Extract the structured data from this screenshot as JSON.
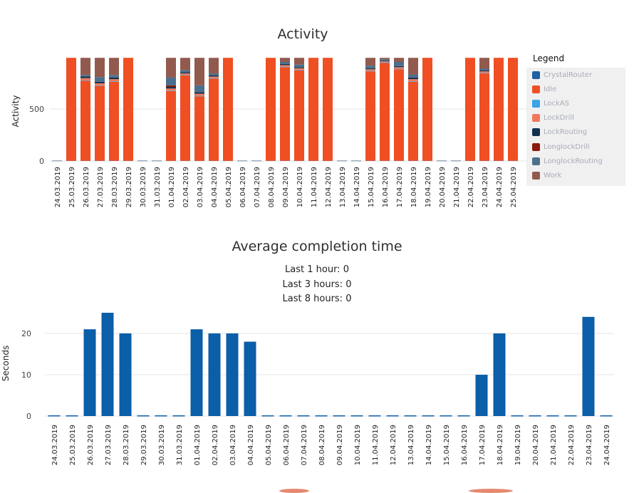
{
  "activity": {
    "title": "Activity",
    "ylabel": "Activity",
    "legend_title": "Legend"
  },
  "completion": {
    "title": "Average completion time",
    "ylabel": "Seconds",
    "stats": [
      "Last 1 hour: 0",
      "Last 3 hours: 0",
      "Last 8 hours: 0"
    ]
  },
  "chart_data": [
    {
      "type": "bar",
      "stacked": true,
      "title": "Activity",
      "xlabel": "",
      "ylabel": "Activity",
      "ylim": [
        0,
        1000
      ],
      "yticks": [
        0,
        500
      ],
      "grid": true,
      "legend_position": "right",
      "categories": [
        "24.03.2019",
        "25.03.2019",
        "26.03.2019",
        "27.03.2019",
        "28.03.2019",
        "29.03.2019",
        "30.03.2019",
        "31.03.2019",
        "01.04.2019",
        "02.04.2019",
        "03.04.2019",
        "04.04.2019",
        "05.04.2019",
        "06.04.2019",
        "07.04.2019",
        "08.04.2019",
        "09.04.2019",
        "10.04.2019",
        "11.04.2019",
        "12.04.2019",
        "13.04.2019",
        "14.04.2019",
        "15.04.2019",
        "16.04.2019",
        "17.04.2019",
        "18.04.2019",
        "19.04.2019",
        "20.04.2019",
        "21.04.2019",
        "22.04.2019",
        "23.04.2019",
        "24.04.2019",
        "25.04.2019"
      ],
      "series": [
        {
          "name": "CrystalRouter",
          "color": "#1f5fa3",
          "values": [
            0,
            2,
            2,
            2,
            2,
            2,
            0,
            0,
            2,
            2,
            2,
            2,
            2,
            0,
            0,
            2,
            2,
            2,
            2,
            2,
            0,
            0,
            2,
            2,
            2,
            2,
            2,
            0,
            0,
            2,
            2,
            2,
            2
          ]
        },
        {
          "name": "Idle",
          "color": "#f04e23",
          "values": [
            0,
            990,
            770,
            720,
            760,
            990,
            0,
            0,
            670,
            820,
            620,
            790,
            990,
            0,
            0,
            990,
            900,
            870,
            990,
            990,
            0,
            0,
            860,
            940,
            880,
            760,
            990,
            0,
            0,
            990,
            840,
            990,
            990
          ]
        },
        {
          "name": "LockAS",
          "color": "#3ba3e6",
          "values": [
            0,
            0,
            5,
            5,
            5,
            0,
            0,
            0,
            5,
            5,
            5,
            5,
            0,
            0,
            0,
            0,
            5,
            5,
            0,
            0,
            0,
            0,
            5,
            5,
            5,
            5,
            0,
            0,
            0,
            0,
            5,
            0,
            0
          ]
        },
        {
          "name": "LockDrill",
          "color": "#f0795a",
          "values": [
            0,
            0,
            20,
            20,
            20,
            0,
            0,
            0,
            20,
            15,
            20,
            15,
            0,
            0,
            0,
            0,
            15,
            15,
            0,
            0,
            0,
            0,
            15,
            10,
            15,
            20,
            0,
            0,
            0,
            0,
            15,
            0,
            0
          ]
        },
        {
          "name": "LockRouting",
          "color": "#12314f",
          "values": [
            0,
            0,
            15,
            15,
            15,
            0,
            0,
            0,
            15,
            10,
            15,
            10,
            0,
            0,
            0,
            0,
            10,
            10,
            0,
            0,
            0,
            0,
            10,
            5,
            10,
            15,
            0,
            0,
            0,
            0,
            10,
            0,
            0
          ]
        },
        {
          "name": "LonglockDrill",
          "color": "#8b1a0c",
          "values": [
            0,
            0,
            0,
            0,
            0,
            0,
            0,
            0,
            15,
            0,
            0,
            0,
            0,
            0,
            0,
            0,
            0,
            0,
            0,
            0,
            0,
            0,
            0,
            0,
            0,
            0,
            0,
            0,
            0,
            0,
            0,
            0,
            0
          ]
        },
        {
          "name": "LonglockRouting",
          "color": "#4c6f8c",
          "values": [
            0,
            0,
            15,
            45,
            25,
            0,
            0,
            0,
            75,
            20,
            65,
            20,
            0,
            0,
            0,
            0,
            20,
            25,
            0,
            0,
            0,
            0,
            25,
            15,
            40,
            30,
            0,
            0,
            0,
            0,
            15,
            0,
            0
          ]
        },
        {
          "name": "Work",
          "color": "#925a4f",
          "values": [
            0,
            0,
            165,
            185,
            165,
            0,
            0,
            0,
            190,
            120,
            265,
            150,
            0,
            0,
            0,
            0,
            40,
            65,
            0,
            0,
            0,
            0,
            75,
            15,
            40,
            160,
            0,
            0,
            0,
            0,
            105,
            0,
            0
          ]
        }
      ]
    },
    {
      "type": "bar",
      "title": "Average completion time",
      "xlabel": "",
      "ylabel": "Seconds",
      "ylim": [
        0,
        26
      ],
      "yticks": [
        0,
        10,
        20
      ],
      "grid": true,
      "color": "#0b5ea8",
      "categories": [
        "24.03.2019",
        "25.03.2019",
        "26.03.2019",
        "27.03.2019",
        "28.03.2019",
        "29.03.2019",
        "30.03.2019",
        "31.03.2019",
        "01.04.2019",
        "02.04.2019",
        "03.04.2019",
        "04.04.2019",
        "05.04.2019",
        "06.04.2019",
        "07.04.2019",
        "08.04.2019",
        "09.04.2019",
        "10.04.2019",
        "11.04.2019",
        "12.04.2019",
        "13.04.2019",
        "14.04.2019",
        "15.04.2019",
        "16.04.2019",
        "17.04.2019",
        "18.04.2019",
        "19.04.2019",
        "20.04.2019",
        "21.04.2019",
        "22.04.2019",
        "23.04.2019",
        "24.04.2019"
      ],
      "values": [
        0,
        0,
        21,
        25,
        20,
        0,
        0,
        0,
        21,
        20,
        20,
        18,
        0,
        0,
        0,
        0,
        0,
        0,
        0,
        0,
        0,
        0,
        0,
        0,
        10,
        20,
        0,
        0,
        0,
        0,
        24,
        0
      ]
    }
  ]
}
